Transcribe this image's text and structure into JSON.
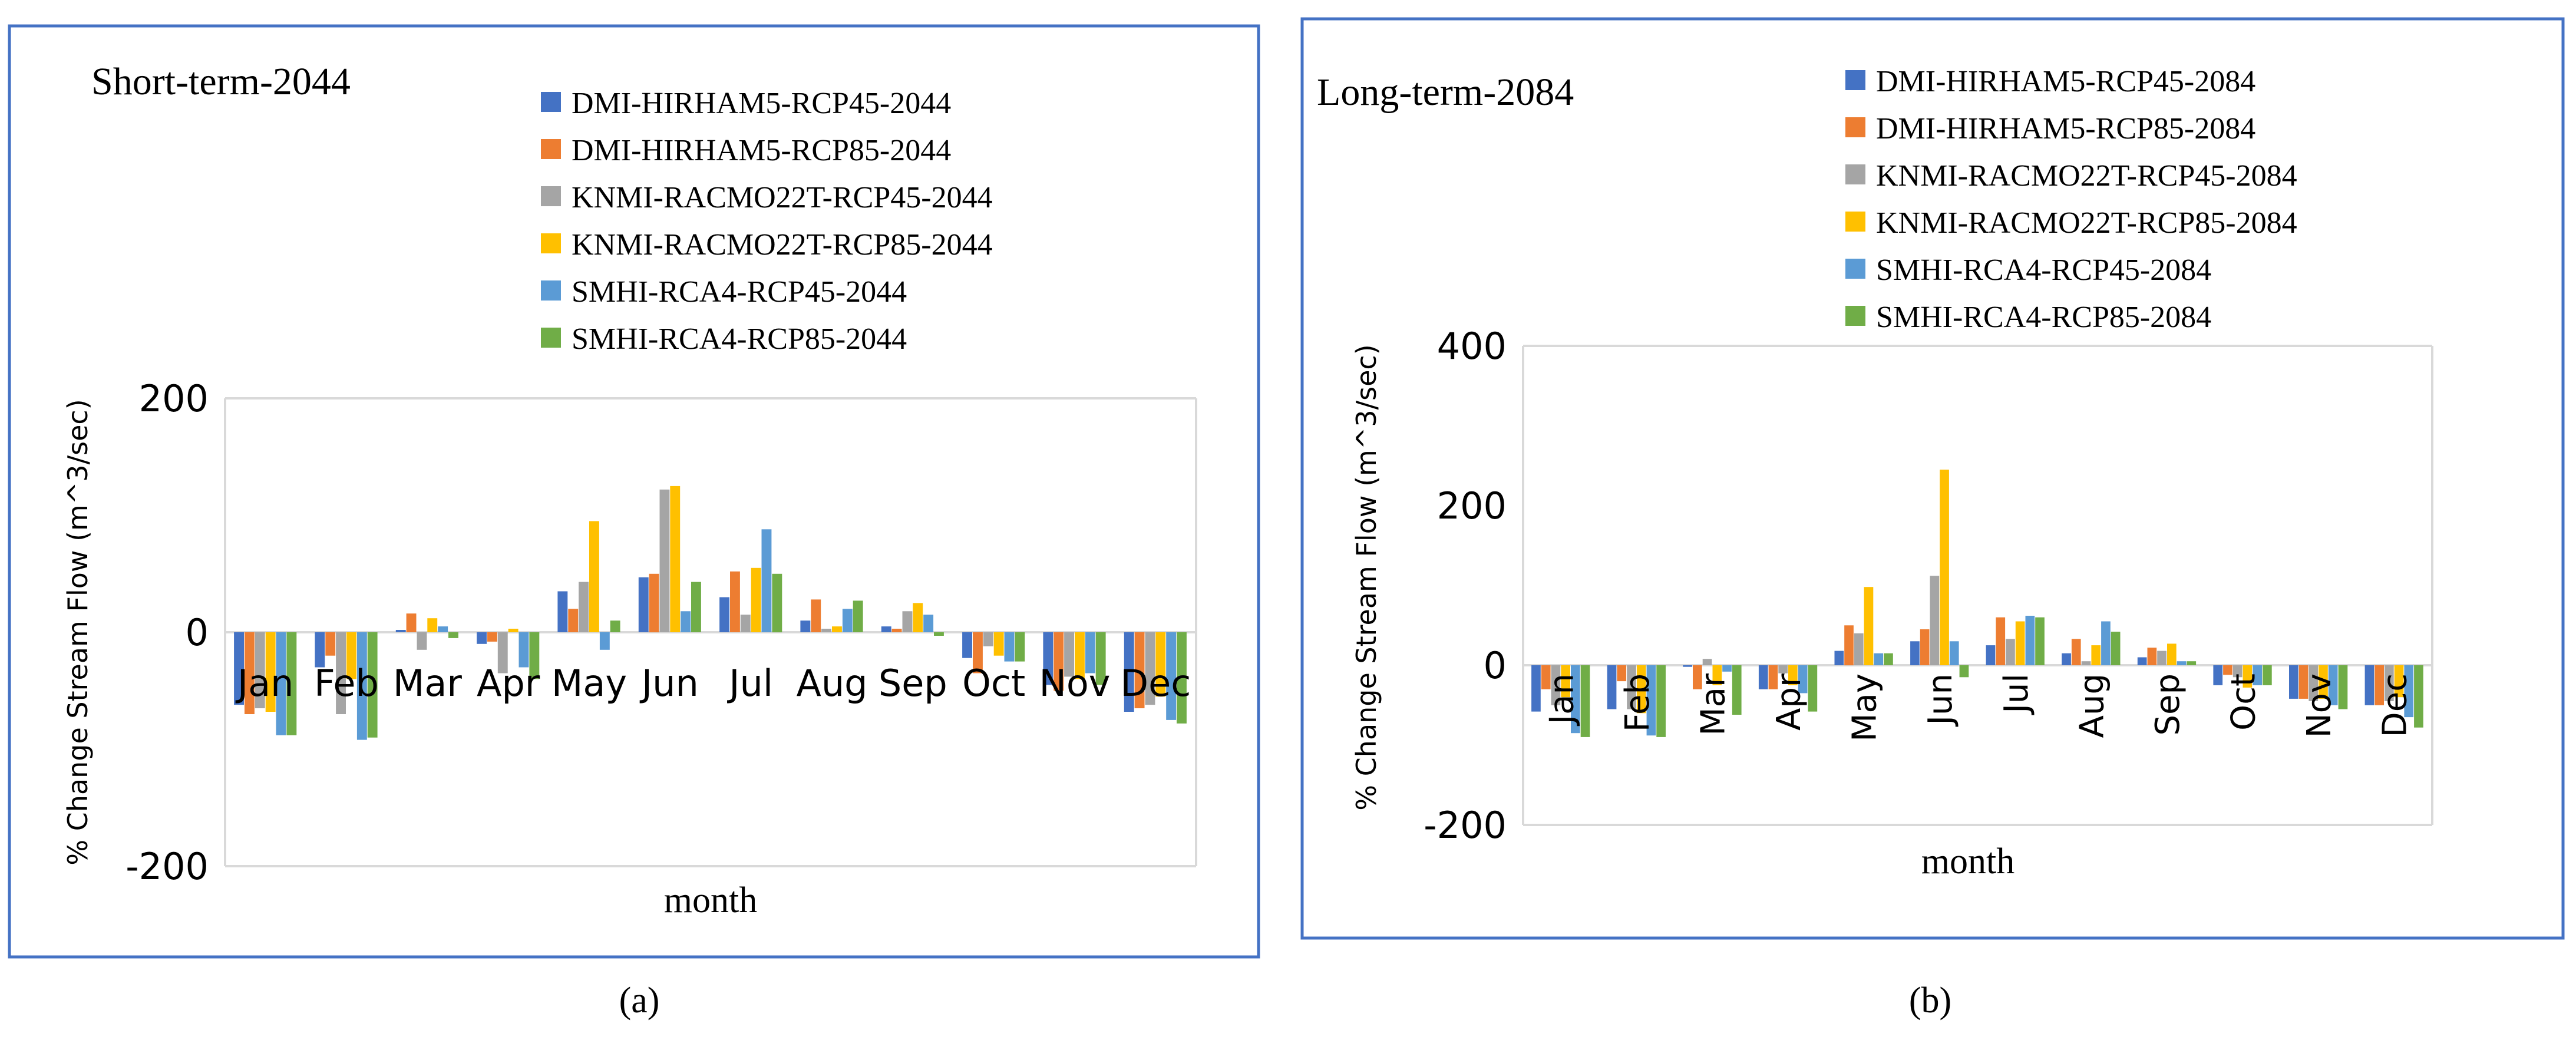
{
  "colors": {
    "frame": "#4472C4",
    "axis": "#D9D9D9",
    "text": "#000000",
    "series": [
      "#4472C4",
      "#ED7D31",
      "#A5A5A5",
      "#FFC000",
      "#5B9BD5",
      "#70AD47"
    ]
  },
  "chart_data": [
    {
      "type": "bar",
      "title": "Short-term-2044",
      "caption": "(a)",
      "xlabel": "month",
      "ylabel": "% Change Stream Flow (m^3/sec)",
      "ylim": [
        -200,
        200
      ],
      "yticks": [
        200,
        0,
        -200
      ],
      "tick_labels": [
        "200",
        "0",
        "-200"
      ],
      "legend_position": "top-right",
      "categories": [
        "Jan",
        "Feb",
        "Mar",
        "Apr",
        "May",
        "Jun",
        "Jul",
        "Aug",
        "Sep",
        "Oct",
        "Nov",
        "Dec"
      ],
      "series": [
        {
          "name": "DMI-HIRHAM5-RCP45-2044",
          "values": [
            -62,
            -30,
            2,
            -10,
            35,
            47,
            30,
            10,
            5,
            -22,
            -45,
            -68
          ]
        },
        {
          "name": "DMI-HIRHAM5-RCP85-2044",
          "values": [
            -70,
            -20,
            16,
            -8,
            20,
            50,
            52,
            28,
            3,
            -35,
            -50,
            -65
          ]
        },
        {
          "name": "KNMI-RACMO22T-RCP45-2044",
          "values": [
            -65,
            -70,
            -15,
            -35,
            43,
            122,
            15,
            3,
            18,
            -12,
            -38,
            -62
          ]
        },
        {
          "name": "KNMI-RACMO22T-RCP85-2044",
          "values": [
            -68,
            -40,
            12,
            3,
            95,
            125,
            55,
            5,
            25,
            -20,
            -40,
            -55
          ]
        },
        {
          "name": "SMHI-RCA4-RCP45-2044",
          "values": [
            -88,
            -92,
            5,
            -30,
            -15,
            18,
            88,
            20,
            15,
            -25,
            -35,
            -75
          ]
        },
        {
          "name": "SMHI-RCA4-RCP85-2044",
          "values": [
            -88,
            -90,
            -5,
            -40,
            10,
            43,
            50,
            27,
            -3,
            -25,
            -45,
            -78
          ]
        }
      ]
    },
    {
      "type": "bar",
      "title": "Long-term-2084",
      "caption": "(b)",
      "xlabel": "month",
      "ylabel": "% Change Stream Flow (m^3/sec)",
      "ylim": [
        -200,
        400
      ],
      "yticks": [
        400,
        200,
        0,
        -200
      ],
      "tick_labels": [
        "400",
        "200",
        "0",
        "-200"
      ],
      "legend_position": "top-right",
      "categories": [
        "Jan",
        "Feb",
        "Mar",
        "Apr",
        "May",
        "Jun",
        "Jul",
        "Aug",
        "Sep",
        "Oct",
        "Nov",
        "Dec"
      ],
      "series": [
        {
          "name": "DMI-HIRHAM5-RCP45-2084",
          "values": [
            -58,
            -55,
            -2,
            -30,
            18,
            30,
            25,
            15,
            10,
            -25,
            -42,
            -50
          ]
        },
        {
          "name": "DMI-HIRHAM5-RCP85-2084",
          "values": [
            -30,
            -20,
            -30,
            -30,
            50,
            45,
            60,
            33,
            22,
            -12,
            -42,
            -50
          ]
        },
        {
          "name": "KNMI-RACMO22T-RCP45-2084",
          "values": [
            -50,
            -55,
            8,
            -10,
            40,
            112,
            33,
            5,
            18,
            -15,
            -45,
            -45
          ]
        },
        {
          "name": "KNMI-RACMO22T-RCP85-2084",
          "values": [
            -40,
            -60,
            -25,
            -25,
            98,
            245,
            55,
            25,
            27,
            -28,
            -42,
            -40
          ]
        },
        {
          "name": "SMHI-RCA4-RCP45-2084",
          "values": [
            -85,
            -88,
            -8,
            -35,
            15,
            30,
            62,
            55,
            5,
            -25,
            -50,
            -65
          ]
        },
        {
          "name": "SMHI-RCA4-RCP85-2084",
          "values": [
            -90,
            -90,
            -62,
            -58,
            15,
            -15,
            60,
            42,
            5,
            -25,
            -55,
            -78
          ]
        }
      ]
    }
  ]
}
